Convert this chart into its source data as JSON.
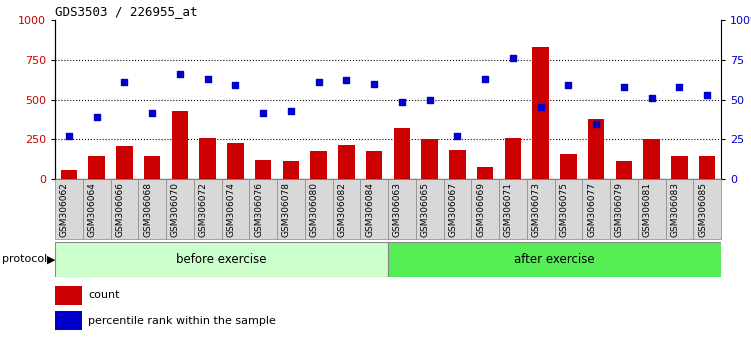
{
  "title": "GDS3503 / 226955_at",
  "categories": [
    "GSM306062",
    "GSM306064",
    "GSM306066",
    "GSM306068",
    "GSM306070",
    "GSM306072",
    "GSM306074",
    "GSM306076",
    "GSM306078",
    "GSM306080",
    "GSM306082",
    "GSM306084",
    "GSM306063",
    "GSM306065",
    "GSM306067",
    "GSM306069",
    "GSM306071",
    "GSM306073",
    "GSM306075",
    "GSM306077",
    "GSM306079",
    "GSM306081",
    "GSM306083",
    "GSM306085"
  ],
  "bar_values": [
    55,
    145,
    210,
    145,
    430,
    255,
    225,
    120,
    115,
    175,
    215,
    175,
    320,
    250,
    185,
    75,
    255,
    830,
    160,
    380,
    115,
    250,
    145,
    145
  ],
  "dot_values": [
    27,
    39,
    61,
    41.5,
    66,
    63,
    59,
    41.5,
    42.5,
    61,
    62,
    60,
    48.5,
    50,
    27,
    63,
    76,
    45.5,
    59,
    34.5,
    58,
    51,
    58,
    53
  ],
  "before_exercise_count": 12,
  "after_exercise_count": 12,
  "bar_color": "#cc0000",
  "dot_color": "#0000cc",
  "before_color": "#ccffcc",
  "after_color": "#55ee55",
  "protocol_label": "protocol",
  "before_label": "before exercise",
  "after_label": "after exercise",
  "legend_bar_label": "count",
  "legend_dot_label": "percentile rank within the sample",
  "ylim_left": [
    0,
    1000
  ],
  "ylim_right": [
    0,
    100
  ],
  "yticks_left": [
    0,
    250,
    500,
    750,
    1000
  ],
  "yticks_right": [
    0,
    25,
    50,
    75,
    100
  ],
  "ytick_labels_right": [
    "0",
    "25",
    "50",
    "75",
    "100%"
  ],
  "hlines": [
    250,
    500,
    750
  ],
  "bg_color": "#ffffff"
}
